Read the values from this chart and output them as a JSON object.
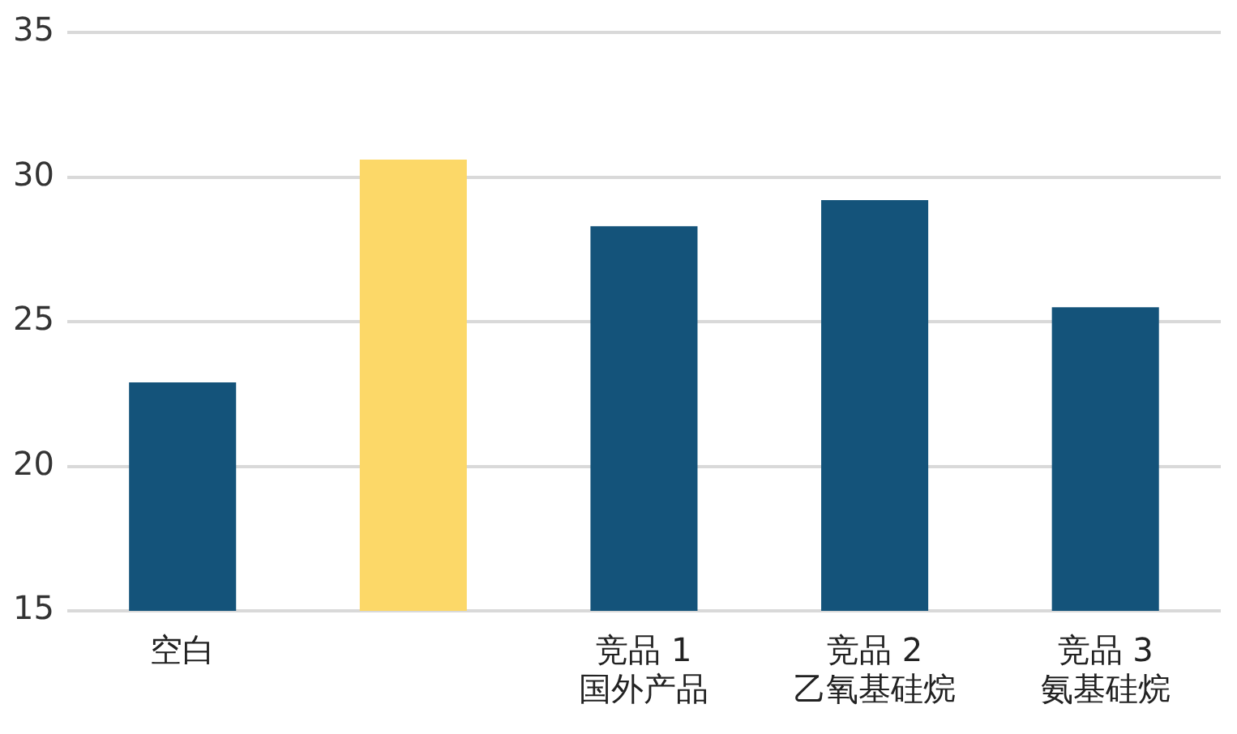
{
  "chart_data": {
    "type": "bar",
    "categories": [
      "空白",
      null,
      "竞品 1\n国外产品",
      "竞品 2\n乙氧基硅烷",
      "竞品 3\n氨基硅烷"
    ],
    "values": [
      22.9,
      30.6,
      28.3,
      29.2,
      25.5
    ],
    "colors": [
      "#14537a",
      "#fcd868",
      "#14537a",
      "#14537a",
      "#14537a"
    ],
    "ylim": [
      15,
      35
    ],
    "yticks": [
      15,
      20,
      25,
      30,
      35
    ],
    "grid": "y",
    "legend": false
  }
}
